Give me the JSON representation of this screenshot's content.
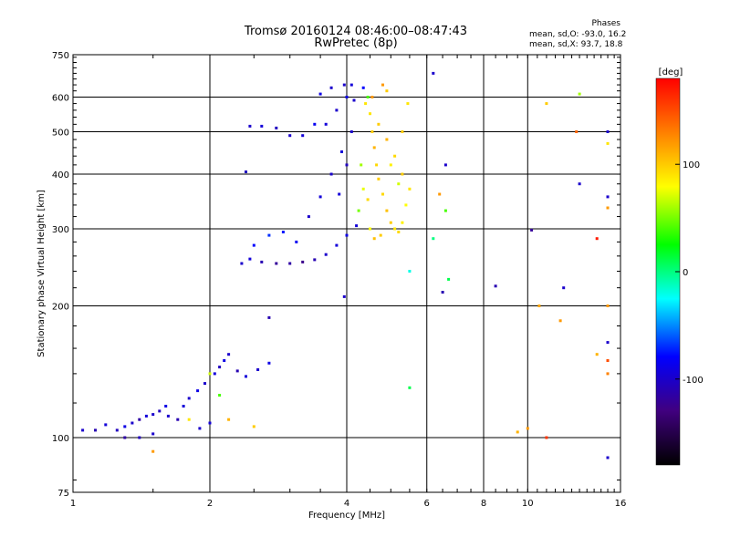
{
  "header": {
    "title": "Tromsø 20160124 08:46:00–08:47:43",
    "subtitle": "RwPretec (8p)"
  },
  "phase_box": {
    "heading": "Phases",
    "line1": "mean, sd,O: -93.0, 16.2",
    "line2": "mean, sd,X:  93.7, 18.8"
  },
  "colorbar": {
    "label": "[deg]",
    "ticks": [
      "100",
      "0",
      "-100"
    ],
    "tick_values": [
      100,
      0,
      -100
    ],
    "range": [
      -180,
      180
    ],
    "colors": [
      "#000000",
      "#40007f",
      "#0000ff",
      "#00ffff",
      "#00ff00",
      "#ffff00",
      "#ff8000",
      "#ff0000"
    ]
  },
  "chart_data": {
    "type": "scatter",
    "title": "Tromsø 20160124 08:46:00–08:47:43",
    "subtitle": "RwPretec (8p)",
    "xlabel": "Frequency [MHz]",
    "ylabel": "Stationary phase Virtual Height [km]",
    "xscale": "log2",
    "yscale": "log",
    "xlim": [
      1,
      16
    ],
    "ylim": [
      75,
      750
    ],
    "xticks": [
      1,
      2,
      4,
      6,
      8,
      10,
      16
    ],
    "xtick_labels": [
      "1",
      "2",
      "4",
      "6",
      "8",
      "10",
      "16"
    ],
    "yticks": [
      75,
      100,
      200,
      300,
      400,
      500,
      600,
      750
    ],
    "ytick_labels": [
      "75",
      "100",
      "200",
      "300",
      "400",
      "500",
      "600",
      "750"
    ],
    "grid": true,
    "series": [
      {
        "name": "O-mode",
        "color_phase_deg": -93.0,
        "points": [
          [
            1.05,
            104,
            -100
          ],
          [
            1.12,
            104,
            -110
          ],
          [
            1.18,
            107,
            -95
          ],
          [
            1.25,
            104,
            -105
          ],
          [
            1.3,
            106,
            -90
          ],
          [
            1.35,
            108,
            -100
          ],
          [
            1.4,
            110,
            -115
          ],
          [
            1.45,
            112,
            -95
          ],
          [
            1.5,
            113,
            -100
          ],
          [
            1.55,
            115,
            -105
          ],
          [
            1.6,
            118,
            -90
          ],
          [
            1.62,
            112,
            -100
          ],
          [
            1.7,
            110,
            -110
          ],
          [
            1.75,
            118,
            -95
          ],
          [
            1.8,
            123,
            -100
          ],
          [
            1.88,
            128,
            -90
          ],
          [
            1.95,
            133,
            -100
          ],
          [
            2.05,
            140,
            -95
          ],
          [
            2.1,
            145,
            -105
          ],
          [
            2.15,
            150,
            -90
          ],
          [
            2.2,
            155,
            -100
          ],
          [
            2.3,
            142,
            -110
          ],
          [
            2.4,
            138,
            -95
          ],
          [
            2.55,
            143,
            -100
          ],
          [
            2.7,
            148,
            -90
          ],
          [
            1.9,
            105,
            -100
          ],
          [
            2.0,
            108,
            -95
          ],
          [
            1.4,
            100,
            -105
          ],
          [
            1.5,
            102,
            -100
          ],
          [
            1.3,
            100,
            -115
          ],
          [
            2.35,
            250,
            -100
          ],
          [
            2.45,
            256,
            -95
          ],
          [
            2.6,
            252,
            -110
          ],
          [
            2.8,
            250,
            -120
          ],
          [
            3.0,
            250,
            -115
          ],
          [
            3.2,
            252,
            -125
          ],
          [
            3.4,
            255,
            -110
          ],
          [
            3.6,
            262,
            -100
          ],
          [
            3.8,
            275,
            -95
          ],
          [
            4.0,
            290,
            -90
          ],
          [
            4.2,
            305,
            -95
          ],
          [
            2.5,
            275,
            -80
          ],
          [
            2.7,
            290,
            -70
          ],
          [
            2.9,
            295,
            -75
          ],
          [
            3.1,
            280,
            -85
          ],
          [
            3.3,
            320,
            -100
          ],
          [
            3.5,
            355,
            -95
          ],
          [
            3.7,
            400,
            -100
          ],
          [
            3.9,
            450,
            -95
          ],
          [
            4.1,
            500,
            -100
          ],
          [
            3.6,
            520,
            -95
          ],
          [
            3.8,
            560,
            -100
          ],
          [
            4.0,
            600,
            -90
          ],
          [
            3.4,
            520,
            -85
          ],
          [
            3.2,
            490,
            -95
          ],
          [
            3.0,
            490,
            -100
          ],
          [
            2.8,
            510,
            -105
          ],
          [
            2.6,
            515,
            -95
          ],
          [
            2.45,
            515,
            -100
          ],
          [
            3.95,
            640,
            -100
          ],
          [
            4.1,
            640,
            -95
          ],
          [
            3.7,
            630,
            -100
          ],
          [
            3.5,
            610,
            -90
          ],
          [
            4.15,
            590,
            -100
          ],
          [
            4.0,
            420,
            -105
          ],
          [
            3.85,
            360,
            -95
          ],
          [
            2.4,
            405,
            -105
          ],
          [
            3.95,
            210,
            -100
          ],
          [
            6.5,
            215,
            -110
          ],
          [
            8.5,
            222,
            -110
          ],
          [
            6.2,
            680,
            -100
          ],
          [
            6.6,
            420,
            -100
          ],
          [
            15,
            500,
            -100
          ],
          [
            15,
            90,
            -100
          ],
          [
            15,
            355,
            -100
          ],
          [
            15,
            165,
            -100
          ],
          [
            12,
            220,
            -100
          ],
          [
            10.2,
            298,
            -120
          ],
          [
            13,
            380,
            -100
          ],
          [
            2.7,
            188,
            -110
          ]
        ]
      },
      {
        "name": "X-mode",
        "color_phase_deg": 93.7,
        "points": [
          [
            4.35,
            630,
            -80
          ],
          [
            4.45,
            600,
            40
          ],
          [
            4.5,
            550,
            90
          ],
          [
            4.55,
            500,
            100
          ],
          [
            4.6,
            460,
            110
          ],
          [
            4.65,
            420,
            95
          ],
          [
            4.7,
            390,
            100
          ],
          [
            4.8,
            360,
            95
          ],
          [
            4.9,
            330,
            105
          ],
          [
            5.0,
            310,
            100
          ],
          [
            5.1,
            300,
            90
          ],
          [
            5.2,
            295,
            95
          ],
          [
            5.3,
            310,
            85
          ],
          [
            5.4,
            340,
            80
          ],
          [
            5.5,
            370,
            90
          ],
          [
            5.3,
            400,
            100
          ],
          [
            5.1,
            440,
            95
          ],
          [
            4.9,
            480,
            110
          ],
          [
            4.7,
            520,
            100
          ],
          [
            4.55,
            600,
            120
          ],
          [
            4.4,
            580,
            90
          ],
          [
            4.3,
            420,
            60
          ],
          [
            4.25,
            330,
            50
          ],
          [
            4.5,
            300,
            80
          ],
          [
            4.6,
            285,
            105
          ],
          [
            4.75,
            290,
            100
          ],
          [
            4.45,
            350,
            95
          ],
          [
            4.35,
            370,
            75
          ],
          [
            5.0,
            420,
            85
          ],
          [
            5.2,
            380,
            70
          ],
          [
            4.8,
            640,
            120
          ],
          [
            5.3,
            500,
            100
          ],
          [
            5.45,
            580,
            90
          ],
          [
            6.6,
            330,
            40
          ],
          [
            6.7,
            230,
            10
          ],
          [
            5.5,
            240,
            -20
          ],
          [
            6.4,
            360,
            120
          ],
          [
            6.2,
            285,
            0
          ],
          [
            10,
            105,
            120
          ],
          [
            9.5,
            103,
            110
          ],
          [
            11,
            100,
            160
          ],
          [
            10.6,
            200,
            115
          ],
          [
            11.8,
            185,
            120
          ],
          [
            13,
            610,
            60
          ],
          [
            14.2,
            285,
            170
          ],
          [
            15,
            470,
            90
          ],
          [
            15,
            335,
            120
          ],
          [
            15,
            150,
            150
          ],
          [
            14.2,
            155,
            110
          ],
          [
            15,
            140,
            130
          ],
          [
            15,
            200,
            120
          ],
          [
            12.8,
            500,
            140
          ],
          [
            11,
            580,
            100
          ],
          [
            2.0,
            140,
            70
          ],
          [
            2.1,
            125,
            40
          ],
          [
            1.8,
            110,
            90
          ],
          [
            1.5,
            93,
            120
          ],
          [
            2.5,
            106,
            100
          ],
          [
            2.2,
            110,
            110
          ],
          [
            5.5,
            130,
            10
          ],
          [
            4.9,
            620,
            100
          ]
        ]
      }
    ]
  }
}
